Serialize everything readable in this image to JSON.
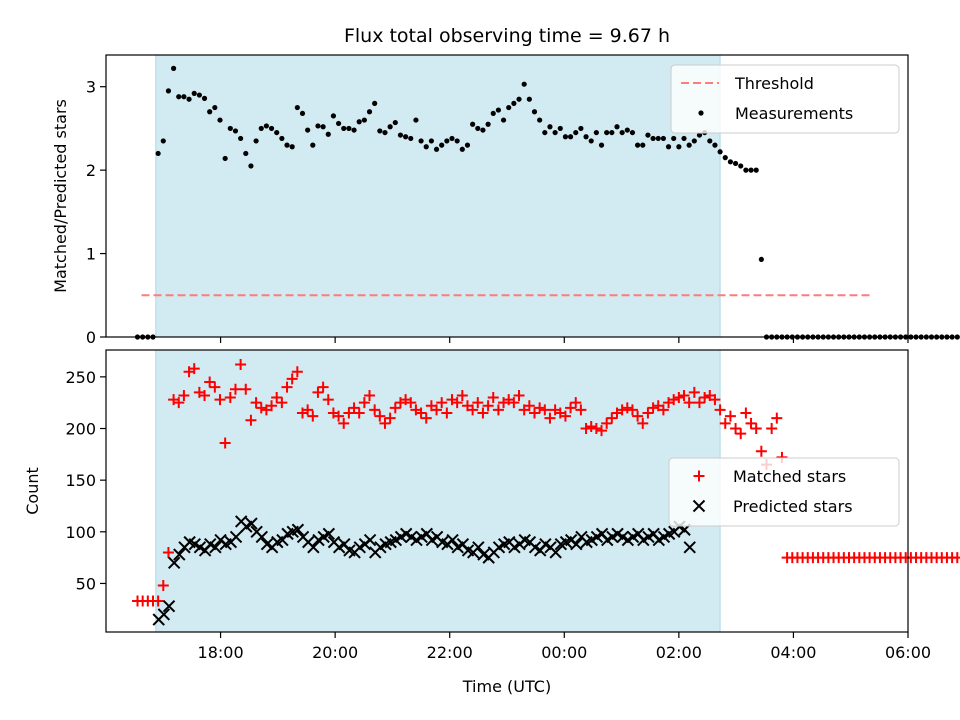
{
  "chart_data": {
    "type": "scatter",
    "title": "Flux total observing time = 9.67 h",
    "xlabel": "Time (UTC)",
    "x_tick_labels": [
      "18:00",
      "20:00",
      "22:00",
      "00:00",
      "02:00",
      "04:00",
      "06:00"
    ],
    "x_ticks_hours": [
      18,
      20,
      22,
      24,
      26,
      28,
      30
    ],
    "xlim_hours": [
      16.0,
      30.0
    ],
    "shaded_interval_hours": [
      16.87,
      26.72
    ],
    "shade_color": "#add8e6",
    "panels": [
      {
        "ylabel": "Matched/Predicted stars",
        "ylim": [
          0,
          3.38
        ],
        "y_ticks": [
          0,
          1,
          2,
          3
        ],
        "y_tick_labels": [
          "0",
          "1",
          "2",
          "3"
        ],
        "legend_position": "top-right",
        "threshold": {
          "name": "Threshold",
          "value": 0.5,
          "x_range_hours": [
            16.62,
            29.35
          ],
          "color": "#ff7b7b"
        },
        "series": [
          {
            "name": "Measurements",
            "marker": "dot",
            "color": "#000000",
            "x_start_hours": 16.55,
            "x_step_hours": 0.09,
            "values": [
              0,
              0,
              0,
              0,
              2.2,
              2.35,
              2.95,
              3.22,
              2.88,
              2.88,
              2.85,
              2.92,
              2.9,
              2.86,
              2.7,
              2.75,
              2.6,
              2.14,
              2.5,
              2.47,
              2.38,
              2.2,
              2.05,
              2.35,
              2.5,
              2.53,
              2.5,
              2.45,
              2.38,
              2.3,
              2.28,
              2.75,
              2.68,
              2.48,
              2.3,
              2.53,
              2.52,
              2.43,
              2.65,
              2.56,
              2.5,
              2.5,
              2.48,
              2.58,
              2.6,
              2.7,
              2.8,
              2.47,
              2.45,
              2.52,
              2.57,
              2.42,
              2.4,
              2.38,
              2.6,
              2.35,
              2.28,
              2.35,
              2.25,
              2.3,
              2.35,
              2.38,
              2.35,
              2.25,
              2.3,
              2.55,
              2.5,
              2.48,
              2.55,
              2.68,
              2.72,
              2.6,
              2.75,
              2.8,
              2.85,
              3.03,
              2.85,
              2.7,
              2.6,
              2.45,
              2.52,
              2.45,
              2.5,
              2.4,
              2.4,
              2.45,
              2.5,
              2.4,
              2.35,
              2.45,
              2.3,
              2.45,
              2.45,
              2.52,
              2.45,
              2.48,
              2.45,
              2.3,
              2.3,
              2.42,
              2.38,
              2.38,
              2.38,
              2.28,
              2.38,
              2.28,
              2.38,
              2.3,
              2.35,
              2.42,
              2.45,
              2.35,
              2.3,
              2.22,
              2.15,
              2.1,
              2.08,
              2.05,
              2.0,
              2.0,
              2.0,
              0.93,
              0,
              0,
              0,
              0,
              0,
              0,
              0,
              0,
              0,
              0,
              0,
              0,
              0,
              0,
              0,
              0,
              0,
              0,
              0,
              0,
              0,
              0,
              0,
              0,
              0,
              0,
              0,
              0,
              0,
              0,
              0,
              0,
              0,
              0,
              0,
              0,
              0,
              0,
              0
            ]
          }
        ]
      },
      {
        "ylabel": "Count",
        "ylim": [
          3,
          276
        ],
        "y_ticks": [
          50,
          100,
          150,
          200,
          250
        ],
        "y_tick_labels": [
          "50",
          "100",
          "150",
          "200",
          "250"
        ],
        "legend_position": "center-right",
        "series": [
          {
            "name": "Matched stars",
            "marker": "plus",
            "color": "#ff0000",
            "x_start_hours": 16.55,
            "x_step_hours": 0.09,
            "values": [
              33,
              33,
              33,
              33,
              33,
              48,
              80,
              228,
              225,
              232,
              255,
              258,
              235,
              232,
              245,
              240,
              228,
              186,
              230,
              238,
              262,
              238,
              208,
              225,
              220,
              218,
              222,
              230,
              225,
              240,
              248,
              255,
              215,
              218,
              212,
              235,
              240,
              228,
              215,
              212,
              205,
              215,
              220,
              215,
              225,
              232,
              218,
              212,
              205,
              210,
              220,
              225,
              228,
              225,
              218,
              215,
              210,
              222,
              218,
              225,
              215,
              228,
              225,
              232,
              222,
              218,
              225,
              215,
              222,
              230,
              218,
              225,
              228,
              225,
              232,
              218,
              222,
              215,
              220,
              218,
              210,
              218,
              215,
              212,
              220,
              225,
              218,
              200,
              202,
              200,
              198,
              205,
              210,
              215,
              218,
              220,
              218,
              212,
              205,
              215,
              220,
              222,
              218,
              225,
              228,
              230,
              232,
              225,
              235,
              225,
              230,
              232,
              228,
              218,
              205,
              212,
              200,
              195,
              215,
              205,
              200,
              178,
              165,
              200,
              210,
              172,
              75,
              75,
              75,
              75,
              75,
              75,
              75,
              75,
              75,
              75,
              75,
              75,
              75,
              75,
              75,
              75,
              75,
              75,
              75,
              75,
              75,
              75,
              75,
              75,
              75,
              75,
              75,
              75,
              75,
              75,
              75,
              75,
              75,
              75
            ]
          },
          {
            "name": "Predicted stars",
            "marker": "x",
            "color": "#000000",
            "x_start_hours": 16.92,
            "x_step_hours": 0.09,
            "values": [
              15,
              20,
              28,
              70,
              78,
              85,
              90,
              88,
              85,
              82,
              88,
              85,
              92,
              88,
              90,
              95,
              110,
              105,
              108,
              100,
              95,
              88,
              85,
              90,
              92,
              98,
              100,
              102,
              95,
              90,
              85,
              92,
              95,
              98,
              90,
              85,
              88,
              82,
              80,
              85,
              88,
              92,
              80,
              85,
              88,
              90,
              92,
              95,
              98,
              95,
              92,
              95,
              98,
              92,
              95,
              90,
              88,
              92,
              85,
              88,
              82,
              80,
              85,
              78,
              75,
              80,
              85,
              88,
              90,
              85,
              88,
              92,
              90,
              85,
              82,
              88,
              85,
              80,
              88,
              90,
              92,
              88,
              95,
              90,
              92,
              95,
              98,
              92,
              95,
              98,
              95,
              92,
              95,
              98,
              92,
              95,
              98,
              92,
              95,
              98,
              100,
              105,
              102,
              85
            ]
          }
        ]
      }
    ]
  }
}
